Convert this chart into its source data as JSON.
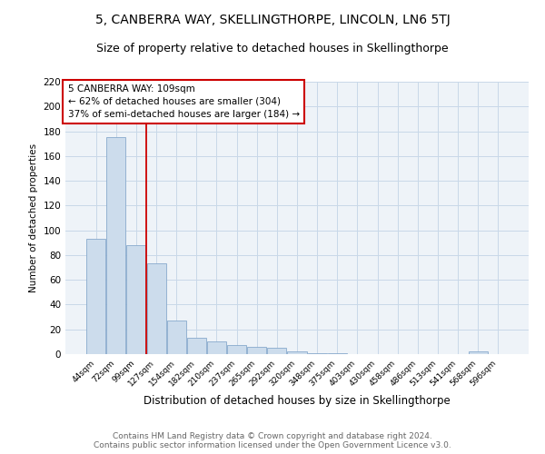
{
  "title": "5, CANBERRA WAY, SKELLINGTHORPE, LINCOLN, LN6 5TJ",
  "subtitle": "Size of property relative to detached houses in Skellingthorpe",
  "xlabel": "Distribution of detached houses by size in Skellingthorpe",
  "ylabel": "Number of detached properties",
  "categories": [
    "44sqm",
    "72sqm",
    "99sqm",
    "127sqm",
    "154sqm",
    "182sqm",
    "210sqm",
    "237sqm",
    "265sqm",
    "292sqm",
    "320sqm",
    "348sqm",
    "375sqm",
    "403sqm",
    "430sqm",
    "458sqm",
    "486sqm",
    "513sqm",
    "541sqm",
    "568sqm",
    "596sqm"
  ],
  "values": [
    93,
    175,
    88,
    73,
    27,
    13,
    10,
    7,
    6,
    5,
    2,
    1,
    1,
    0,
    0,
    0,
    0,
    0,
    0,
    2,
    0
  ],
  "bar_color": "#ccdcec",
  "bar_edge_color": "#88aacc",
  "property_line_x": 2.5,
  "property_line_color": "#cc0000",
  "annotation_text": "5 CANBERRA WAY: 109sqm\n← 62% of detached houses are smaller (304)\n37% of semi-detached houses are larger (184) →",
  "annotation_box_color": "#ffffff",
  "annotation_box_edge": "#cc0000",
  "ylim": [
    0,
    220
  ],
  "yticks": [
    0,
    20,
    40,
    60,
    80,
    100,
    120,
    140,
    160,
    180,
    200,
    220
  ],
  "grid_color": "#c8d8e8",
  "background_color": "#eef3f8",
  "footer": "Contains HM Land Registry data © Crown copyright and database right 2024.\nContains public sector information licensed under the Open Government Licence v3.0.",
  "title_fontsize": 10,
  "subtitle_fontsize": 9,
  "footer_fontsize": 6.5
}
